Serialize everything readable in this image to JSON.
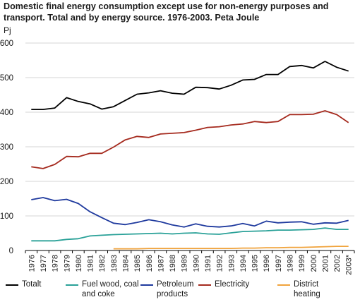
{
  "header": {
    "title": "Domestic final energy consumption except use for non-energy purposes and transport. Total and by energy source. 1976-2003. Peta Joule"
  },
  "chart_data": {
    "type": "line",
    "ylabel": "Pj",
    "ylim": [
      0,
      600
    ],
    "yticks": [
      "0",
      "100",
      "200",
      "300",
      "400",
      "500",
      "600"
    ],
    "grid": "horizontal",
    "legend_position": "bottom",
    "categories": [
      "1976",
      "1977",
      "1978",
      "1979",
      "1980",
      "1981",
      "1982",
      "1983",
      "1984",
      "1985",
      "1986",
      "1987",
      "1988",
      "1989",
      "1990",
      "1991",
      "1992",
      "1993",
      "1994",
      "1995",
      "1996",
      "1997",
      "1998",
      "1999",
      "2000",
      "2001",
      "2002",
      "2003*"
    ],
    "series": [
      {
        "name": "Totalt",
        "color": "#000000",
        "values": [
          408,
          408,
          412,
          442,
          431,
          424,
          409,
          416,
          434,
          452,
          456,
          462,
          455,
          452,
          472,
          471,
          467,
          478,
          493,
          495,
          509,
          509,
          532,
          535,
          528,
          547,
          530,
          519
        ]
      },
      {
        "name": "Fuel wood, coal and coke",
        "color": "#2aa198",
        "values": [
          28,
          28,
          28,
          32,
          34,
          42,
          44,
          46,
          47,
          48,
          49,
          50,
          48,
          50,
          51,
          48,
          47,
          51,
          55,
          56,
          57,
          59,
          59,
          60,
          61,
          65,
          61,
          61
        ]
      },
      {
        "name": "Petroleum products",
        "color": "#1f3a9e",
        "values": [
          147,
          153,
          144,
          148,
          136,
          112,
          95,
          79,
          75,
          81,
          89,
          83,
          74,
          68,
          77,
          70,
          68,
          71,
          78,
          71,
          85,
          80,
          82,
          83,
          76,
          80,
          79,
          87
        ]
      },
      {
        "name": "Electricity",
        "color": "#a52a1e",
        "values": [
          242,
          237,
          249,
          272,
          271,
          281,
          281,
          299,
          320,
          330,
          327,
          337,
          339,
          341,
          348,
          356,
          358,
          363,
          366,
          373,
          370,
          373,
          393,
          393,
          394,
          404,
          393,
          370
        ]
      },
      {
        "name": "District heating",
        "color": "#f0a33c",
        "values": [
          null,
          null,
          null,
          null,
          null,
          null,
          null,
          5,
          5,
          5,
          6,
          6,
          6,
          6,
          6,
          6,
          6,
          6,
          7,
          7,
          8,
          8,
          9,
          9,
          10,
          11,
          12,
          12
        ]
      }
    ]
  },
  "legend": {
    "items": [
      {
        "label": "Totalt",
        "color": "#000000"
      },
      {
        "label": "Fuel wood, coal and coke",
        "color": "#2aa198"
      },
      {
        "label": "Petroleum products",
        "color": "#1f3a9e"
      },
      {
        "label": "Electricity",
        "color": "#a52a1e"
      },
      {
        "label": "District heating",
        "color": "#f0a33c"
      }
    ]
  }
}
